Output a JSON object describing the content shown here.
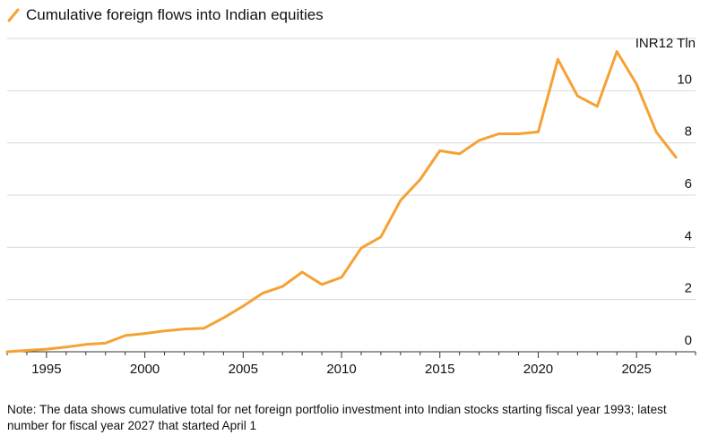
{
  "chart_data": {
    "type": "line",
    "title": "",
    "legend": [
      "Cumulative foreign flows into Indian equities"
    ],
    "legend_placement": "top-left",
    "unit_label": "INR12 Tln",
    "ylabel": "",
    "xlabel": "",
    "ylim": [
      0,
      12
    ],
    "xlim": [
      1993,
      2028
    ],
    "y_ticks": [
      0,
      2,
      4,
      6,
      8,
      10
    ],
    "x_ticks": [
      "1995",
      "2000",
      "2005",
      "2010",
      "2015",
      "2020",
      "2025"
    ],
    "x_tick_values": [
      1995,
      2000,
      2005,
      2010,
      2015,
      2020,
      2025
    ],
    "grid": "horizontal",
    "colors": {
      "line": "#F5A133",
      "grid": "#D9D9D9",
      "axis": "#333333"
    },
    "series": [
      {
        "name": "Cumulative foreign flows into Indian equities",
        "x": [
          1993,
          1994,
          1995,
          1996,
          1997,
          1998,
          1999,
          2000,
          2001,
          2002,
          2003,
          2004,
          2005,
          2006,
          2007,
          2008,
          2009,
          2010,
          2011,
          2012,
          2013,
          2014,
          2015,
          2016,
          2017,
          2018,
          2019,
          2020,
          2021,
          2022,
          2023,
          2024,
          2025,
          2026,
          2027
        ],
        "values": [
          0.0,
          0.05,
          0.1,
          0.18,
          0.28,
          0.33,
          0.62,
          0.7,
          0.8,
          0.87,
          0.9,
          1.3,
          1.75,
          2.25,
          2.5,
          3.05,
          2.58,
          2.85,
          3.97,
          4.4,
          5.8,
          6.6,
          7.7,
          7.58,
          8.1,
          8.35,
          8.35,
          8.42,
          11.2,
          9.8,
          9.4,
          11.5,
          10.25,
          8.42,
          7.45
        ]
      }
    ]
  },
  "note": "Note: The data shows cumulative total for net foreign portfolio investment into Indian stocks starting fiscal year 1993; latest number for fiscal year 2027 that started April 1"
}
